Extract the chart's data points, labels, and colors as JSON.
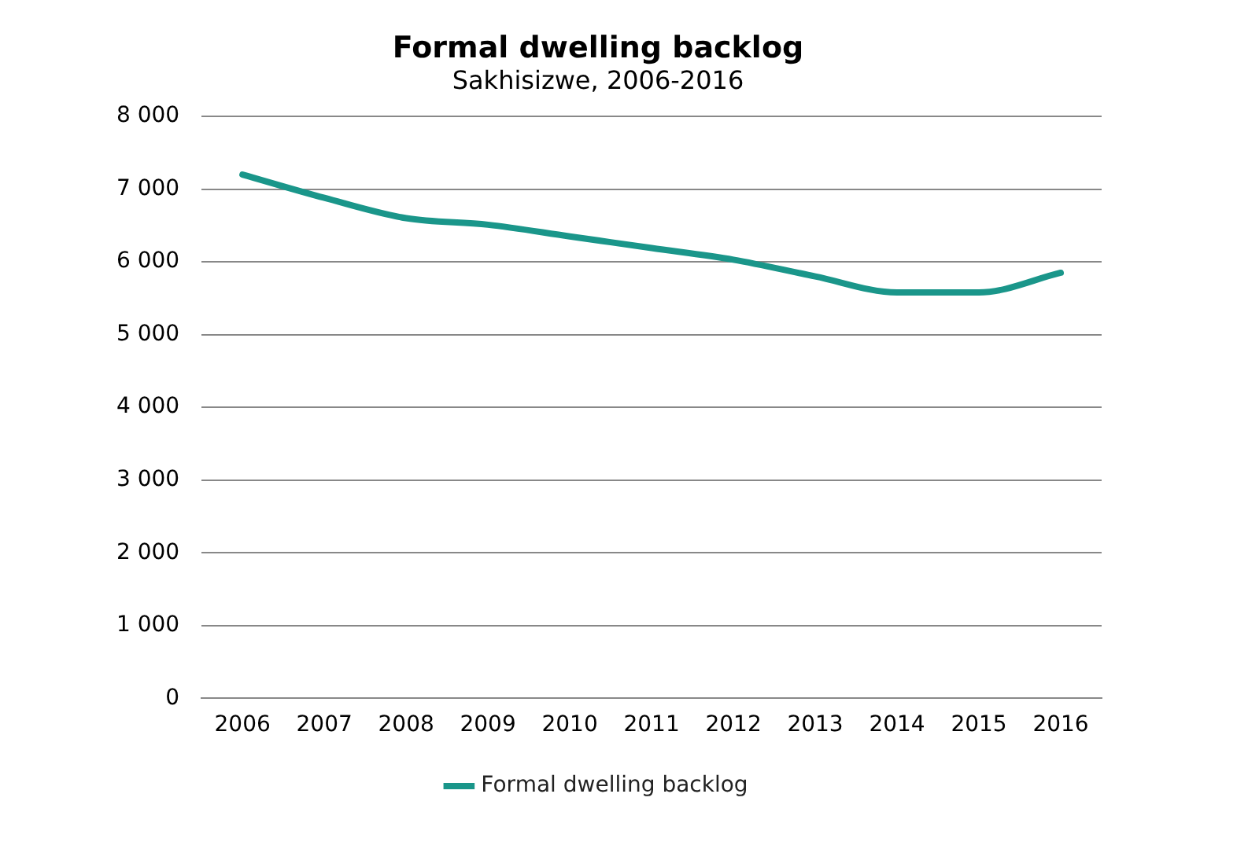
{
  "chart_data": {
    "type": "line",
    "title": "Formal dwelling backlog",
    "subtitle": "Sakhisizwe, 2006-2016",
    "categories": [
      "2006",
      "2007",
      "2008",
      "2009",
      "2010",
      "2011",
      "2012",
      "2013",
      "2014",
      "2015",
      "2016"
    ],
    "series": [
      {
        "name": "Formal dwelling backlog",
        "color": "#1a968a",
        "values": [
          7200,
          6880,
          6600,
          6510,
          6350,
          6190,
          6030,
          5800,
          5580,
          5580,
          5850
        ]
      }
    ],
    "ylim": [
      0,
      8000
    ],
    "yticks": [
      {
        "value": 0,
        "label": "0"
      },
      {
        "value": 1000,
        "label": "1 000"
      },
      {
        "value": 2000,
        "label": "2 000"
      },
      {
        "value": 3000,
        "label": "3 000"
      },
      {
        "value": 4000,
        "label": "4 000"
      },
      {
        "value": 5000,
        "label": "5 000"
      },
      {
        "value": 6000,
        "label": "6 000"
      },
      {
        "value": 7000,
        "label": "7 000"
      },
      {
        "value": 8000,
        "label": "8 000"
      }
    ],
    "grid": "y",
    "legend": "bottom",
    "marker": "none",
    "line_style": "solid"
  }
}
